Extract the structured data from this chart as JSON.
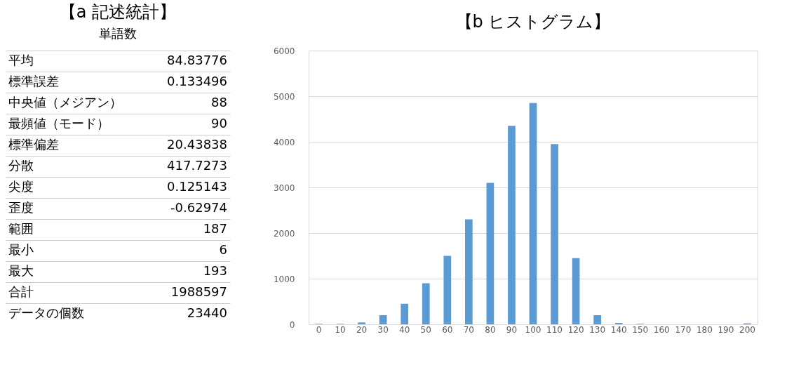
{
  "chart_data": [
    {
      "type": "other",
      "title": "【a 記述統計】",
      "subtitle": "単語数",
      "categories": [
        "平均",
        "標準誤差",
        "中央値（メジアン）",
        "最頻値（モード）",
        "標準偏差",
        "分散",
        "尖度",
        "歪度",
        "範囲",
        "最小",
        "最大",
        "合計",
        "データの個数"
      ],
      "value_labels": [
        "84.83776",
        "0.133496",
        "88",
        "90",
        "20.43838",
        "417.7273",
        "0.125143",
        "-0.62974",
        "187",
        "6",
        "193",
        "1988597",
        "23440"
      ]
    },
    {
      "type": "bar",
      "title": "【b ヒストグラム】",
      "categories": [
        "0",
        "10",
        "20",
        "30",
        "40",
        "50",
        "60",
        "70",
        "80",
        "90",
        "100",
        "110",
        "120",
        "130",
        "140",
        "150",
        "160",
        "170",
        "180",
        "190",
        "200"
      ],
      "values": [
        10,
        10,
        40,
        200,
        450,
        900,
        1500,
        2300,
        3100,
        4350,
        4850,
        3950,
        1450,
        200,
        30,
        10,
        0,
        0,
        0,
        0,
        20
      ],
      "color": "#5b9bd5",
      "ylim": [
        0,
        6000
      ],
      "yticks": [
        0,
        1000,
        2000,
        3000,
        4000,
        5000,
        6000
      ],
      "grid": "y"
    }
  ]
}
